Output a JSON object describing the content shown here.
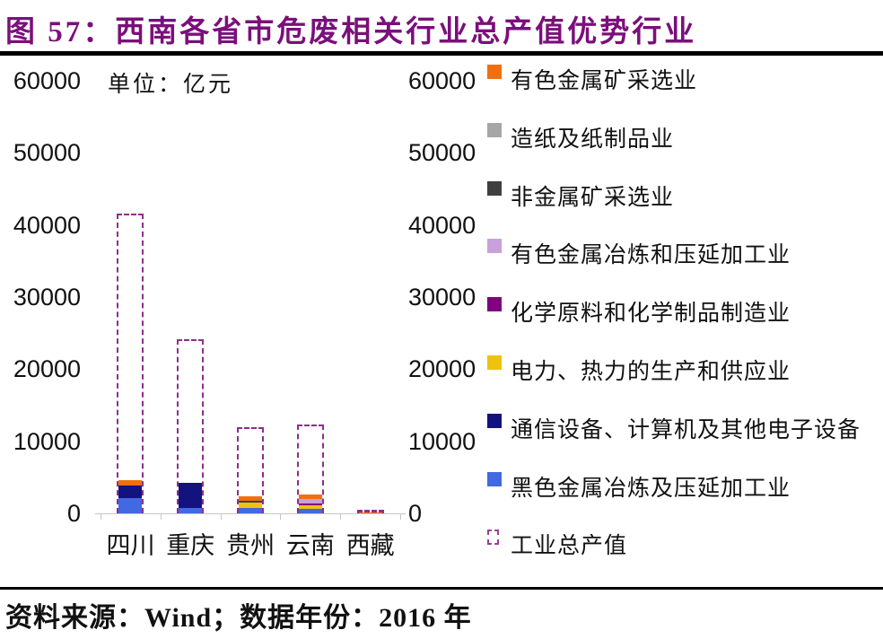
{
  "title": "图 57：西南各省市危废相关行业总产值优势行业",
  "chart": {
    "unit_label": "单位：亿元"
  },
  "footer": {
    "source_text": "资料来源：Wind；数据年份：2016 年"
  },
  "colors": {
    "title_accent": "#7B0F7B",
    "outline_dashed": "#8E2E8E",
    "axis_line": "#C6C6C6"
  },
  "legend": {
    "items": [
      {
        "label": "有色金属矿采选业",
        "color": "#F0700F",
        "dashed": false
      },
      {
        "label": "造纸及纸制品业",
        "color": "#A6A6A6",
        "dashed": false
      },
      {
        "label": "非金属矿采选业",
        "color": "#3F3F3F",
        "dashed": false
      },
      {
        "label": "有色金属冶炼和压延加工业",
        "color": "#C9A0DC",
        "dashed": false
      },
      {
        "label": "化学原料和化学制品制造业",
        "color": "#800080",
        "dashed": false
      },
      {
        "label": "电力、热力的生产和供应业",
        "color": "#EFC20C",
        "dashed": false
      },
      {
        "label": "通信设备、计算机及其他电子设备",
        "color": "#13137F",
        "dashed": false
      },
      {
        "label": "黑色金属冶炼及压延加工业",
        "color": "#4169E1",
        "dashed": false
      },
      {
        "label": "工业总产值",
        "color": "#8E2E8E",
        "dashed": true
      }
    ]
  },
  "chart_data": {
    "type": "bar",
    "stacked": true,
    "title": "西南各省市危废相关行业总产值优势行业",
    "unit": "亿元",
    "categories": [
      "四川",
      "重庆",
      "贵州",
      "云南",
      "西藏"
    ],
    "ylim": [
      0,
      60000
    ],
    "yticks": [
      60000,
      50000,
      40000,
      30000,
      20000,
      10000,
      0
    ],
    "grid": false,
    "legend_position": "right",
    "series": [
      {
        "name": "黑色金属冶炼及压延加工业",
        "color": "#4169E1",
        "values": [
          2100,
          800,
          700,
          600,
          0
        ]
      },
      {
        "name": "通信设备、计算机及其他电子设备",
        "color": "#13137F",
        "values": [
          1800,
          3400,
          0,
          0,
          0
        ]
      },
      {
        "name": "电力、热力的生产和供应业",
        "color": "#EFC20C",
        "values": [
          0,
          0,
          850,
          550,
          0
        ]
      },
      {
        "name": "化学原料和化学制品制造业",
        "color": "#800080",
        "values": [
          0,
          0,
          0,
          200,
          0
        ]
      },
      {
        "name": "有色金属冶炼和压延加工业",
        "color": "#C9A0DC",
        "values": [
          0,
          0,
          0,
          650,
          0
        ]
      },
      {
        "name": "非金属矿采选业",
        "color": "#3F3F3F",
        "values": [
          0,
          0,
          250,
          0,
          0
        ]
      },
      {
        "name": "造纸及纸制品业",
        "color": "#A6A6A6",
        "values": [
          0,
          0,
          0,
          0,
          0
        ]
      },
      {
        "name": "有色金属矿采选业",
        "color": "#F0700F",
        "values": [
          700,
          0,
          600,
          650,
          150
        ]
      }
    ],
    "outline_series": {
      "name": "工业总产值",
      "style": "dashed",
      "color": "#8E2E8E",
      "values": [
        41600,
        24200,
        11900,
        12300,
        300
      ]
    }
  }
}
